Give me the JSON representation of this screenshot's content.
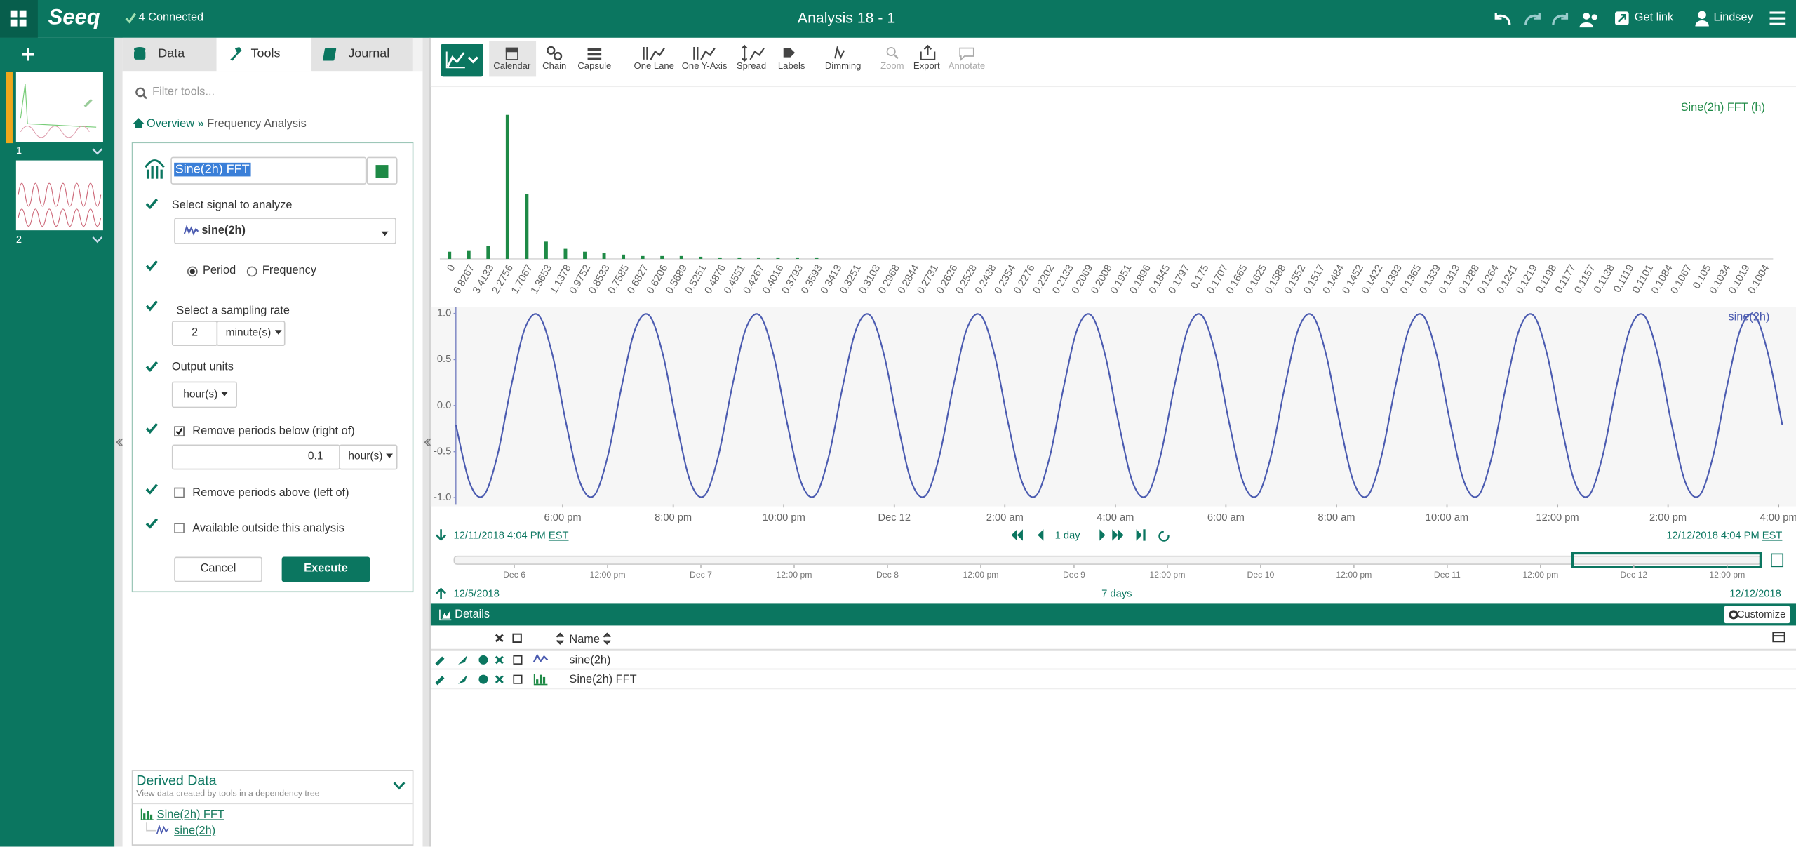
{
  "header": {
    "app": "Seeq",
    "connection": "4 Connected",
    "title": "Analysis 18 - 1",
    "get_link": "Get link",
    "user": "Lindsey"
  },
  "worksheets": [
    "1",
    "2"
  ],
  "tabs": [
    "Data",
    "Tools",
    "Journal"
  ],
  "tools": {
    "filter_placeholder": "Filter tools...",
    "breadcrumb": [
      "Overview",
      "»",
      "Frequency Analysis"
    ],
    "name": "Sine(2h) FFT",
    "signal_label": "Select signal to analyze",
    "signal": "sine(2h)",
    "period": "Period",
    "frequency": "Frequency",
    "rate_label": "Select a sampling rate",
    "rate_value": 2,
    "rate_unit": "minute(s)",
    "output_label": "Output units",
    "output_unit": "hour(s)",
    "remove_below": "Remove periods below (right of)",
    "below_value": 0.1,
    "below_unit": "hour(s)",
    "remove_above": "Remove periods above (left of)",
    "available": "Available outside this analysis",
    "cancel": "Cancel",
    "execute": "Execute"
  },
  "toolbar": [
    "Calendar",
    "Chain",
    "Capsule",
    "One Lane",
    "One Y-Axis",
    "Spread",
    "Labels",
    "Dimming",
    "Zoom",
    "Export",
    "Annotate"
  ],
  "chart_data": [
    {
      "type": "bar",
      "categories": [
        "0",
        "6.8267",
        "3.4133",
        "2.2756",
        "1.7067",
        "1.3653",
        "1.1378",
        "0.9752",
        "0.8533",
        "0.7585",
        "0.6827",
        "0.6206",
        "0.5689",
        "0.5251",
        "0.4876",
        "0.4551",
        "0.4267",
        "0.4016",
        "0.3793",
        "0.3593",
        "0.3413",
        "0.3251",
        "0.3103",
        "0.2968",
        "0.2844",
        "0.2731",
        "0.2626",
        "0.2528",
        "0.2438",
        "0.2354",
        "0.2276",
        "0.2202",
        "0.2133",
        "0.2069",
        "0.2008",
        "0.1951",
        "0.1896",
        "0.1845",
        "0.1797",
        "0.175",
        "0.1707",
        "0.1665",
        "0.1625",
        "0.1588",
        "0.1552",
        "0.1517",
        "0.1484",
        "0.1452",
        "0.1422",
        "0.1393",
        "0.1365",
        "0.1339",
        "0.1313",
        "0.1288",
        "0.1264",
        "0.1241",
        "0.1219",
        "0.1198",
        "0.1177",
        "0.1157",
        "0.1138",
        "0.1119",
        "0.1101",
        "0.1084",
        "0.1067",
        "0.105",
        "0.1034",
        "0.1019",
        "0.1004"
      ],
      "series": [
        {
          "name": "Sine(2h) FFT (h)",
          "color": "#1e8a46",
          "values": [
            0.05,
            0.06,
            0.09,
            1.0,
            0.45,
            0.12,
            0.07,
            0.05,
            0.04,
            0.03,
            0.02,
            0.02,
            0.02,
            0.015,
            0.01,
            0.01,
            0.01,
            0.01,
            0.01,
            0.01,
            0,
            0,
            0,
            0,
            0,
            0,
            0,
            0,
            0,
            0,
            0,
            0,
            0,
            0,
            0,
            0,
            0,
            0,
            0,
            0,
            0,
            0,
            0,
            0,
            0,
            0,
            0,
            0,
            0,
            0,
            0,
            0,
            0,
            0,
            0,
            0,
            0,
            0,
            0,
            0,
            0,
            0,
            0,
            0,
            0,
            0,
            0,
            0,
            0
          ]
        }
      ],
      "ylim": [
        0,
        1.05
      ]
    },
    {
      "type": "line",
      "x": [
        "2018-12-11T16:04",
        "2018-12-11T16:19",
        "2018-12-11T16:34",
        "2018-12-11T16:49",
        "2018-12-11T17:04",
        "2018-12-11T17:19",
        "2018-12-11T17:34",
        "2018-12-11T17:49",
        "2018-12-11T18:04",
        "2018-12-11T18:19",
        "2018-12-11T18:34",
        "2018-12-11T18:49",
        "2018-12-11T19:04",
        "2018-12-11T19:19",
        "2018-12-11T19:34",
        "2018-12-11T19:49",
        "2018-12-11T20:04",
        "2018-12-11T20:19",
        "2018-12-11T20:34",
        "2018-12-11T20:49",
        "2018-12-11T21:04",
        "2018-12-11T21:19",
        "2018-12-11T21:34",
        "2018-12-11T21:49",
        "2018-12-11T22:04",
        "2018-12-11T22:19",
        "2018-12-11T22:34",
        "2018-12-11T22:49",
        "2018-12-11T23:04",
        "2018-12-11T23:19",
        "2018-12-11T23:34",
        "2018-12-11T23:49",
        "2018-12-12T00:04",
        "2018-12-12T00:19",
        "2018-12-12T00:34",
        "2018-12-12T00:49",
        "2018-12-12T01:04",
        "2018-12-12T01:19",
        "2018-12-12T01:34",
        "2018-12-12T01:49",
        "2018-12-12T02:04",
        "2018-12-12T02:19",
        "2018-12-12T02:34",
        "2018-12-12T02:49",
        "2018-12-12T03:04",
        "2018-12-12T03:19",
        "2018-12-12T03:34",
        "2018-12-12T03:49",
        "2018-12-12T04:04",
        "2018-12-12T04:19",
        "2018-12-12T04:34",
        "2018-12-12T04:49",
        "2018-12-12T05:04",
        "2018-12-12T05:19",
        "2018-12-12T05:34",
        "2018-12-12T05:49",
        "2018-12-12T06:04",
        "2018-12-12T06:19",
        "2018-12-12T06:34",
        "2018-12-12T06:49",
        "2018-12-12T07:04",
        "2018-12-12T07:19",
        "2018-12-12T07:34",
        "2018-12-12T07:49",
        "2018-12-12T08:04",
        "2018-12-12T08:19",
        "2018-12-12T08:34",
        "2018-12-12T08:49",
        "2018-12-12T09:04",
        "2018-12-12T09:19",
        "2018-12-12T09:34",
        "2018-12-12T09:49",
        "2018-12-12T10:04",
        "2018-12-12T10:19",
        "2018-12-12T10:34",
        "2018-12-12T10:49",
        "2018-12-12T11:04",
        "2018-12-12T11:19",
        "2018-12-12T11:34",
        "2018-12-12T11:49",
        "2018-12-12T12:04",
        "2018-12-12T12:19",
        "2018-12-12T12:34",
        "2018-12-12T12:49",
        "2018-12-12T13:04",
        "2018-12-12T13:19",
        "2018-12-12T13:34",
        "2018-12-12T13:49",
        "2018-12-12T14:04",
        "2018-12-12T14:19",
        "2018-12-12T14:34",
        "2018-12-12T14:49",
        "2018-12-12T15:04",
        "2018-12-12T15:19",
        "2018-12-12T15:34",
        "2018-12-12T15:49",
        "2018-12-12T16:04"
      ],
      "series": [
        {
          "name": "sine(2h)",
          "color": "#4b5bb0",
          "values": [
            -0.208,
            -0.839,
            -0.978,
            -0.545,
            0.208,
            0.839,
            0.978,
            0.545,
            -0.208,
            -0.839,
            -0.978,
            -0.545,
            0.208,
            0.839,
            0.978,
            0.545,
            -0.208,
            -0.839,
            -0.978,
            -0.545,
            0.208,
            0.839,
            0.978,
            0.545,
            -0.208,
            -0.839,
            -0.978,
            -0.545,
            0.208,
            0.839,
            0.978,
            0.545,
            -0.208,
            -0.839,
            -0.978,
            -0.545,
            0.208,
            0.839,
            0.978,
            0.545,
            -0.208,
            -0.839,
            -0.978,
            -0.545,
            0.208,
            0.839,
            0.978,
            0.545,
            -0.208,
            -0.839,
            -0.978,
            -0.545,
            0.208,
            0.839,
            0.978,
            0.545,
            -0.208,
            -0.839,
            -0.978,
            -0.545,
            0.208,
            0.839,
            0.978,
            0.545,
            -0.208,
            -0.839,
            -0.978,
            -0.545,
            0.208,
            0.839,
            0.978,
            0.545,
            -0.208,
            -0.839,
            -0.978,
            -0.545,
            0.208,
            0.839,
            0.978,
            0.545,
            -0.208,
            -0.839,
            -0.978,
            -0.545,
            0.208,
            0.839,
            0.978,
            0.545,
            -0.208,
            -0.839,
            -0.978,
            -0.545,
            0.208,
            0.839,
            0.978,
            0.545,
            -0.208
          ]
        }
      ],
      "xlim": [
        "2018-12-11T16:04",
        "2018-12-12T16:04"
      ],
      "xticks": [
        {
          "value": "2018-12-11T18:00",
          "label": "6:00 pm"
        },
        {
          "value": "2018-12-11T20:00",
          "label": "8:00 pm"
        },
        {
          "value": "2018-12-11T22:00",
          "label": "10:00 pm"
        },
        {
          "value": "2018-12-12T00:00",
          "label": "Dec 12"
        },
        {
          "value": "2018-12-12T02:00",
          "label": "2:00 am"
        },
        {
          "value": "2018-12-12T04:00",
          "label": "4:00 am"
        },
        {
          "value": "2018-12-12T06:00",
          "label": "6:00 am"
        },
        {
          "value": "2018-12-12T08:00",
          "label": "8:00 am"
        },
        {
          "value": "2018-12-12T10:00",
          "label": "10:00 am"
        },
        {
          "value": "2018-12-12T12:00",
          "label": "12:00 pm"
        },
        {
          "value": "2018-12-12T14:00",
          "label": "2:00 pm"
        },
        {
          "value": "2018-12-12T16:00",
          "label": "4:00 pm"
        }
      ],
      "ylim": [
        -1.07,
        1.07
      ],
      "yticks": [
        {
          "value": -1,
          "label": "-1.0"
        },
        -0.5,
        {
          "value": 0,
          "label": "0.0"
        },
        0.5,
        {
          "value": 1,
          "label": "1.0"
        }
      ]
    }
  ],
  "timebar": {
    "start": "12/11/2018 4:04 PM",
    "start_zone": "EST",
    "step": "1 day",
    "end": "12/12/2018 4:04 PM",
    "end_zone": "EST",
    "navigator_labels": [
      "Dec 6",
      "12:00 pm",
      "Dec 7",
      "12:00 pm",
      "Dec 8",
      "12:00 pm",
      "Dec 9",
      "12:00 pm",
      "Dec 10",
      "12:00 pm",
      "Dec 11",
      "12:00 pm",
      "Dec 12",
      "12:00 pm"
    ],
    "range_start": "12/5/2018",
    "range_length": "7 days",
    "range_end": "12/12/2018"
  },
  "details": {
    "title": "Details",
    "customize": "Customize",
    "column": "Name",
    "rows": [
      "sine(2h)",
      "Sine(2h) FFT"
    ]
  },
  "derived": {
    "title": "Derived Data",
    "subtitle": "View data created by tools in a dependency tree",
    "items": [
      "Sine(2h) FFT",
      "sine(2h)"
    ]
  }
}
